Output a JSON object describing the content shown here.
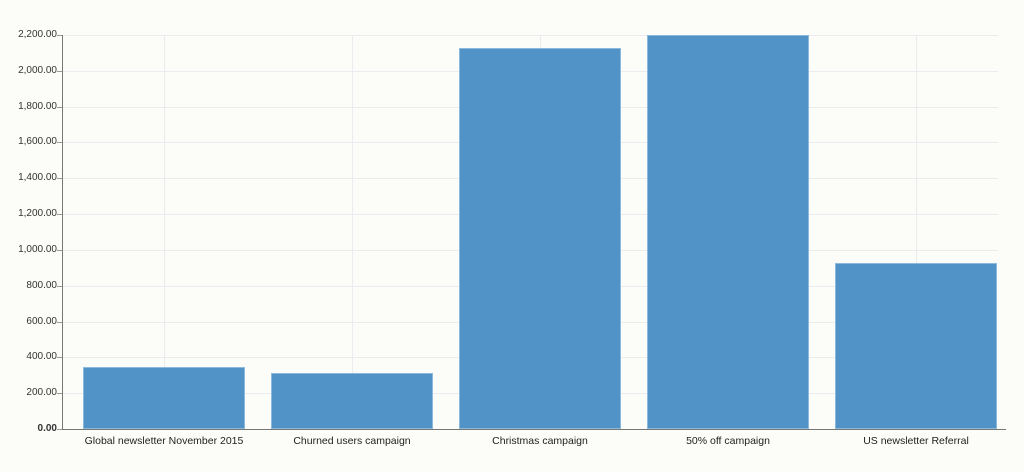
{
  "chart_data": {
    "type": "bar",
    "title": "",
    "xlabel": "",
    "ylabel": "",
    "categories": [
      "Global newsletter November 2015",
      "Churned users campaign",
      "Christmas campaign",
      "50% off campaign",
      "US newsletter Referral"
    ],
    "values": [
      345,
      310,
      2130,
      2200,
      925
    ],
    "ylim": [
      0,
      2200
    ],
    "ytick_step": 200,
    "ytick_labels": [
      "0.00",
      "200.00",
      "400.00",
      "600.00",
      "800.00",
      "1,000.00",
      "1,200.00",
      "1,400.00",
      "1,600.00",
      "1,800.00",
      "2,000.00",
      "2,200.00"
    ],
    "grid": true,
    "legend": "none",
    "colors": {
      "bar_fill": "#5293c7",
      "bar_border": "#8cb9dc",
      "grid_line": "#ebebf0",
      "axis_line": "#777777",
      "tick_mark": "#999999",
      "y_label_text": "#333333",
      "x_label_text": "#222222",
      "background": "#fcfcf8"
    }
  }
}
